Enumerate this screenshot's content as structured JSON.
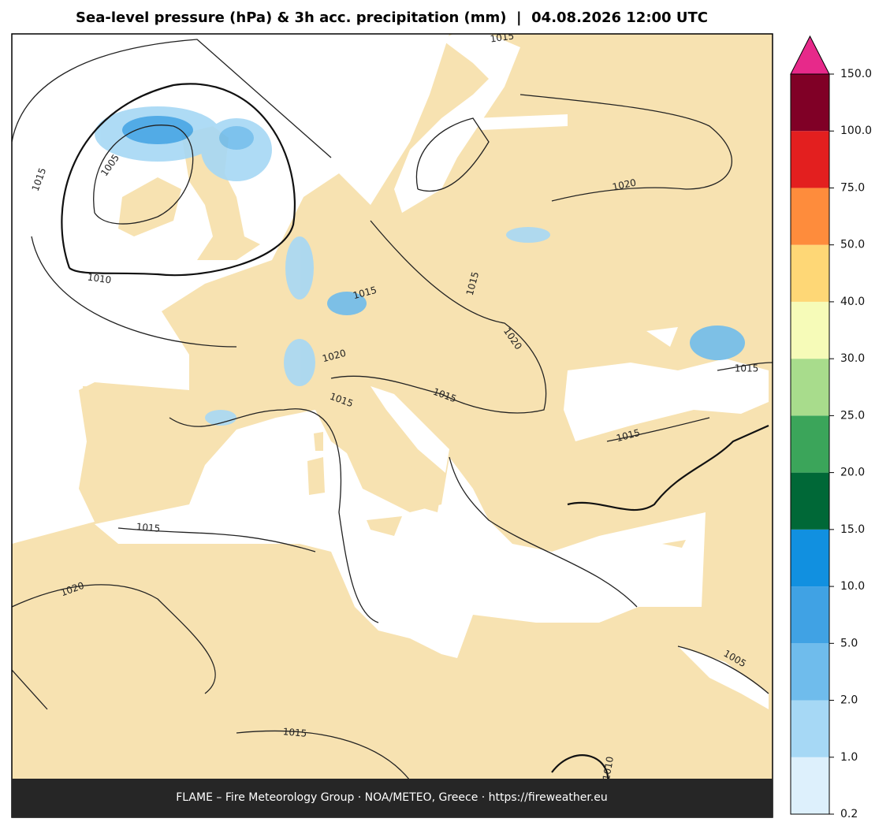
{
  "title": "Sea-level pressure (hPa) & 3h acc. precipitation (mm)  |  04.08.2026 12:00 UTC",
  "footer": "FLAME – Fire Meteorology Group · NOA/METEO, Greece · https://fireweather.eu",
  "colorbar": {
    "ticks": [
      {
        "value": 0.2,
        "label": "0.2"
      },
      {
        "value": 1,
        "label": "1.0"
      },
      {
        "value": 2,
        "label": "2.0"
      },
      {
        "value": 5,
        "label": "5.0"
      },
      {
        "value": 10,
        "label": "10.0"
      },
      {
        "value": 15,
        "label": "15.0"
      },
      {
        "value": 20,
        "label": "20.0"
      },
      {
        "value": 25,
        "label": "25.0"
      },
      {
        "value": 30,
        "label": "30.0"
      },
      {
        "value": 40,
        "label": "40.0"
      },
      {
        "value": 50,
        "label": "50.0"
      },
      {
        "value": 75,
        "label": "75.0"
      },
      {
        "value": 100,
        "label": "100.0"
      },
      {
        "value": 150,
        "label": "150.0"
      }
    ],
    "colors": [
      "#ddf0fc",
      "#a6d8f5",
      "#6fbcec",
      "#40a2e4",
      "#1190e0",
      "#006837",
      "#3ba55a",
      "#a8dc8c",
      "#f6fbb8",
      "#fed776",
      "#fe8c3c",
      "#e31f1f",
      "#800026"
    ],
    "extend_color": "#e7298a"
  },
  "contour_labels": [
    "1015",
    "1015",
    "1005",
    "1010",
    "1020",
    "1015",
    "1015",
    "1020",
    "1020",
    "1015",
    "1015",
    "1015",
    "1015",
    "1015",
    "1020",
    "1005",
    "1015",
    "1010"
  ]
}
